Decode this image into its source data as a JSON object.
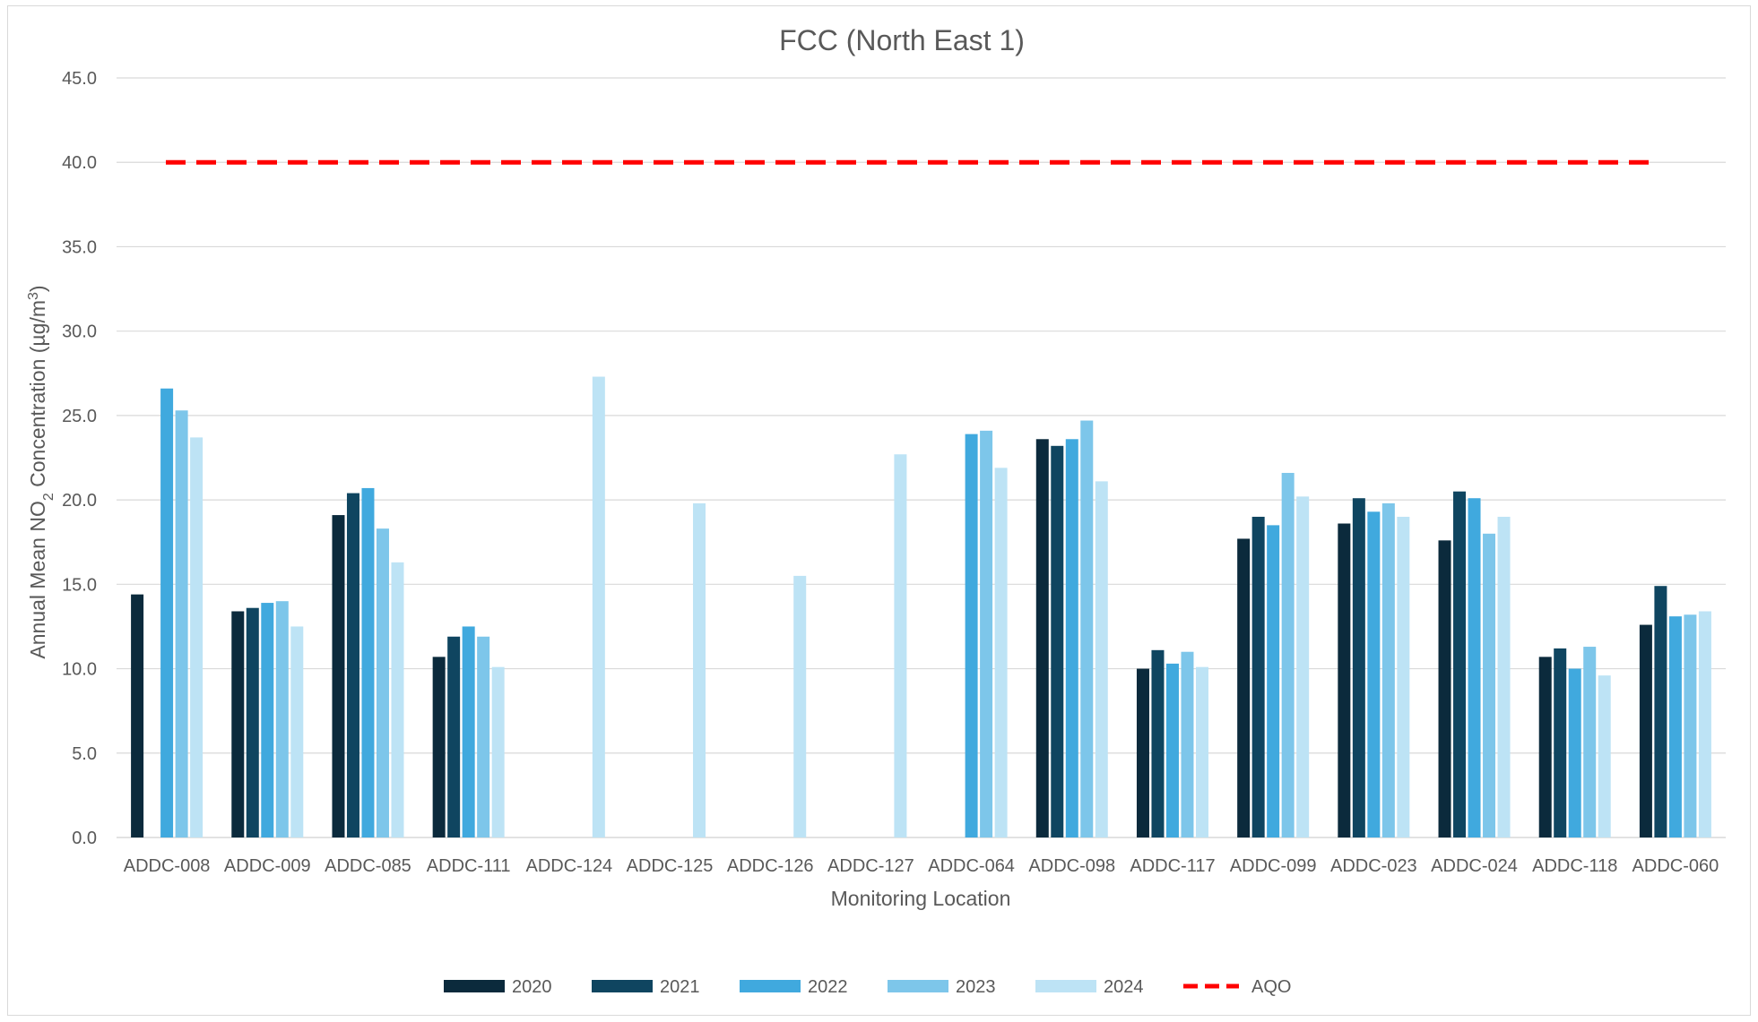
{
  "chart_data": {
    "type": "bar",
    "title": "FCC (North East 1)",
    "xlabel": "Monitoring Location",
    "ylabel": "Annual Mean NO2 Concentration (µg/m3)",
    "ylabel_parts": {
      "pre": "Annual Mean NO",
      "sub": "2",
      "mid": " Concentration (µg/m",
      "sup": "3",
      "post": ")"
    },
    "ylim": [
      0,
      45
    ],
    "yticks": [
      "0.0",
      "5.0",
      "10.0",
      "15.0",
      "20.0",
      "25.0",
      "30.0",
      "35.0",
      "40.0",
      "45.0"
    ],
    "grid": true,
    "legend_position": "bottom",
    "categories": [
      "ADDC-008",
      "ADDC-009",
      "ADDC-085",
      "ADDC-111",
      "ADDC-124",
      "ADDC-125",
      "ADDC-126",
      "ADDC-127",
      "ADDC-064",
      "ADDC-098",
      "ADDC-117",
      "ADDC-099",
      "ADDC-023",
      "ADDC-024",
      "ADDC-118",
      "ADDC-060"
    ],
    "series": [
      {
        "name": "2020",
        "color": "#0b2a3c",
        "values": [
          14.4,
          13.4,
          19.1,
          10.7,
          null,
          null,
          null,
          null,
          null,
          23.6,
          10.0,
          17.7,
          18.6,
          17.6,
          10.7,
          12.6
        ]
      },
      {
        "name": "2021",
        "color": "#0f4560",
        "values": [
          null,
          13.6,
          20.4,
          11.9,
          null,
          null,
          null,
          null,
          null,
          23.2,
          11.1,
          19.0,
          20.1,
          20.5,
          11.2,
          14.9
        ]
      },
      {
        "name": "2022",
        "color": "#40a9de",
        "values": [
          26.6,
          13.9,
          20.7,
          12.5,
          null,
          null,
          null,
          null,
          23.9,
          23.6,
          10.3,
          18.5,
          19.3,
          20.1,
          10.0,
          13.1
        ]
      },
      {
        "name": "2023",
        "color": "#7dc6ea",
        "values": [
          25.3,
          14.0,
          18.3,
          11.9,
          null,
          null,
          null,
          null,
          24.1,
          24.7,
          11.0,
          21.6,
          19.8,
          18.0,
          11.3,
          13.2
        ]
      },
      {
        "name": "2024",
        "color": "#bde3f5",
        "values": [
          23.7,
          12.5,
          16.3,
          10.1,
          27.3,
          19.8,
          15.5,
          22.7,
          21.9,
          21.1,
          10.1,
          20.2,
          19.0,
          19.0,
          9.6,
          13.4
        ]
      }
    ],
    "reference_line": {
      "name": "AQO",
      "value": 40,
      "color": "#ff0000",
      "style": "dashed"
    }
  }
}
